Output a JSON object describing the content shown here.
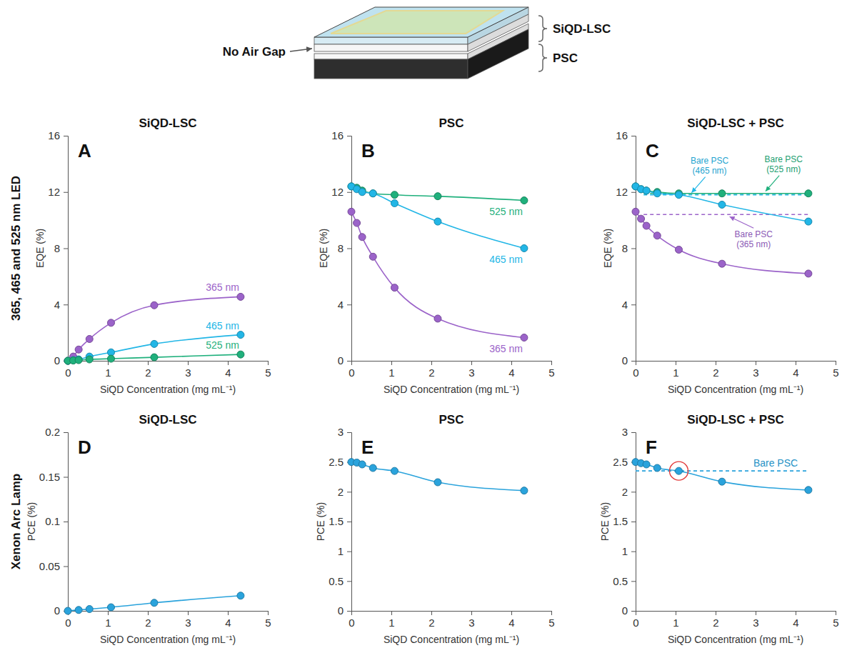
{
  "diagram": {
    "air_gap": "No Air Gap",
    "lsc": "SiQD-LSC",
    "psc": "PSC"
  },
  "row_labels": [
    "365, 465 and 525 nm LED",
    "Xenon Arc Lamp"
  ],
  "chart_data": [
    {
      "type": "line",
      "letter": "A",
      "title": "SiQD-LSC",
      "x_label": "SiQD Concentration (mg mL⁻¹)",
      "y_label": "EQE (%)",
      "x": [
        0,
        0.135,
        0.27,
        0.54,
        1.08,
        2.16,
        4.32
      ],
      "xlim": [
        0,
        5
      ],
      "xticks": [
        0,
        1,
        2,
        3,
        4,
        5
      ],
      "ylim": [
        0,
        16
      ],
      "yticks": [
        0,
        4,
        8,
        12,
        16
      ],
      "marker": "circle",
      "line_style": "solid",
      "series": [
        {
          "name": "365 nm",
          "color": "#9b63c9",
          "values": [
            0,
            0.3,
            0.8,
            1.55,
            2.7,
            3.95,
            4.55
          ]
        },
        {
          "name": "465 nm",
          "color": "#22b6e6",
          "values": [
            0,
            0.05,
            0.1,
            0.3,
            0.6,
            1.2,
            1.85
          ]
        },
        {
          "name": "525 nm",
          "color": "#1fb07c",
          "values": [
            0,
            0.02,
            0.05,
            0.1,
            0.15,
            0.25,
            0.45
          ]
        }
      ]
    },
    {
      "type": "line",
      "letter": "B",
      "title": "PSC",
      "x_label": "SiQD Concentration (mg mL⁻¹)",
      "y_label": "EQE (%)",
      "x": [
        0,
        0.135,
        0.27,
        0.54,
        1.08,
        2.16,
        4.32
      ],
      "xlim": [
        0,
        5
      ],
      "xticks": [
        0,
        1,
        2,
        3,
        4,
        5
      ],
      "ylim": [
        0,
        16
      ],
      "yticks": [
        0,
        4,
        8,
        12,
        16
      ],
      "marker": "circle",
      "line_style": "solid",
      "series": [
        {
          "name": "525 nm",
          "color": "#1fb07c",
          "values": [
            12.4,
            12.3,
            12.1,
            11.9,
            11.8,
            11.7,
            11.4
          ]
        },
        {
          "name": "465 nm",
          "color": "#22b6e6",
          "values": [
            12.4,
            12.2,
            12.0,
            11.9,
            11.2,
            9.9,
            8.0
          ]
        },
        {
          "name": "365 nm",
          "color": "#9b63c9",
          "values": [
            10.6,
            9.8,
            8.8,
            7.4,
            5.2,
            3.0,
            1.65
          ]
        }
      ]
    },
    {
      "type": "line",
      "letter": "C",
      "title": "SiQD-LSC + PSC",
      "x_label": "SiQD Concentration (mg mL⁻¹)",
      "y_label": "EQE (%)",
      "x": [
        0,
        0.135,
        0.27,
        0.54,
        1.08,
        2.16,
        4.32
      ],
      "xlim": [
        0,
        5
      ],
      "xticks": [
        0,
        1,
        2,
        3,
        4,
        5
      ],
      "ylim": [
        0,
        16
      ],
      "yticks": [
        0,
        4,
        8,
        12,
        16
      ],
      "marker": "circle",
      "line_style": "solid",
      "series": [
        {
          "color": "#1fb07c",
          "values": [
            12.4,
            12.2,
            12.1,
            12.0,
            11.9,
            11.9,
            11.9
          ]
        },
        {
          "color": "#22b6e6",
          "values": [
            12.4,
            12.2,
            12.1,
            11.9,
            11.8,
            11.1,
            9.9
          ]
        },
        {
          "color": "#9b63c9",
          "values": [
            10.6,
            10.1,
            9.6,
            8.9,
            7.9,
            6.9,
            6.2
          ]
        }
      ],
      "reference_lines": [
        {
          "label": "Bare PSC (465 nm)",
          "value": 11.8,
          "x": [
            0.2,
            4.32
          ],
          "color": "#22b6e6"
        },
        {
          "label": "Bare PSC (525 nm)",
          "value": 11.9,
          "x": [
            0.2,
            4.32
          ],
          "color": "#1fb07c"
        },
        {
          "label": "Bare PSC (365 nm)",
          "value": 10.4,
          "x": [
            0.2,
            4.32
          ],
          "color": "#9b63c9"
        }
      ]
    },
    {
      "type": "line",
      "letter": "D",
      "title": "SiQD-LSC",
      "x_label": "SiQD Concentration (mg mL⁻¹)",
      "y_label": "PCE (%)",
      "x": [
        0,
        0.27,
        0.54,
        1.08,
        2.16,
        4.32
      ],
      "xlim": [
        0,
        5
      ],
      "xticks": [
        0,
        1,
        2,
        3,
        4,
        5
      ],
      "ylim": [
        0,
        0.2
      ],
      "yticks": [
        0,
        0.05,
        0.1,
        0.15,
        0.2
      ],
      "marker": "circle",
      "line_style": "solid",
      "series": [
        {
          "color": "#2aa3dc",
          "values": [
            0,
            0.001,
            0.002,
            0.004,
            0.009,
            0.017
          ]
        }
      ]
    },
    {
      "type": "line",
      "letter": "E",
      "title": "PSC",
      "x_label": "SiQD Concentration (mg mL⁻¹)",
      "y_label": "PCE (%)",
      "x": [
        0,
        0.135,
        0.27,
        0.54,
        1.08,
        2.16,
        4.32
      ],
      "xlim": [
        0,
        5
      ],
      "xticks": [
        0,
        1,
        2,
        3,
        4,
        5
      ],
      "ylim": [
        0,
        3
      ],
      "yticks": [
        0,
        0.5,
        1,
        1.5,
        2,
        2.5,
        3
      ],
      "marker": "circle",
      "line_style": "solid",
      "series": [
        {
          "color": "#2aa3dc",
          "values": [
            2.5,
            2.49,
            2.46,
            2.4,
            2.35,
            2.16,
            2.02
          ]
        }
      ]
    },
    {
      "type": "line",
      "letter": "F",
      "title": "SiQD-LSC + PSC",
      "x_label": "SiQD Concentration (mg mL⁻¹)",
      "y_label": "PCE (%)",
      "x": [
        0,
        0.135,
        0.27,
        0.54,
        1.08,
        2.16,
        4.32
      ],
      "xlim": [
        0,
        5
      ],
      "xticks": [
        0,
        1,
        2,
        3,
        4,
        5
      ],
      "ylim": [
        0,
        3
      ],
      "yticks": [
        0,
        0.5,
        1,
        1.5,
        2,
        2.5,
        3
      ],
      "marker": "circle",
      "line_style": "solid",
      "series": [
        {
          "color": "#2aa3dc",
          "values": [
            2.5,
            2.48,
            2.46,
            2.4,
            2.35,
            2.17,
            2.03
          ]
        }
      ],
      "reference_lines": [
        {
          "label": "Bare PSC",
          "value": 2.35,
          "x": [
            0,
            4.32
          ],
          "color": "#2aa3dc"
        }
      ],
      "highlight_point": 4
    }
  ]
}
